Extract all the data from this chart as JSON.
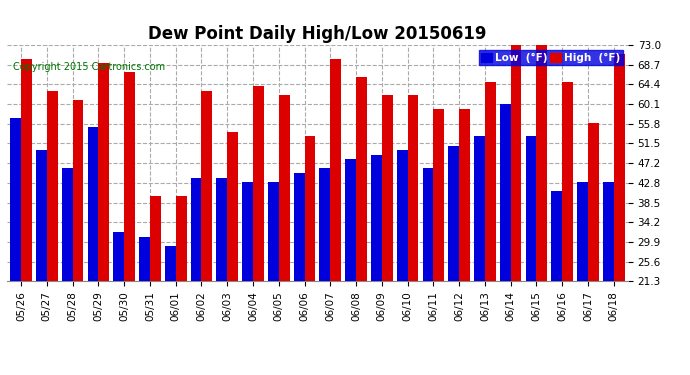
{
  "title": "Dew Point Daily High/Low 20150619",
  "copyright": "Copyright 2015 Cartronics.com",
  "legend_low": "Low  (°F)",
  "legend_high": "High  (°F)",
  "categories": [
    "05/26",
    "05/27",
    "05/28",
    "05/29",
    "05/30",
    "05/31",
    "06/01",
    "06/02",
    "06/03",
    "06/04",
    "06/05",
    "06/06",
    "06/07",
    "06/08",
    "06/09",
    "06/10",
    "06/11",
    "06/12",
    "06/13",
    "06/14",
    "06/15",
    "06/16",
    "06/17",
    "06/18"
  ],
  "low_values": [
    57,
    50,
    46,
    55,
    32,
    31,
    29,
    44,
    44,
    43,
    43,
    45,
    46,
    48,
    49,
    50,
    46,
    51,
    53,
    60,
    53,
    41,
    43,
    43
  ],
  "high_values": [
    70,
    63,
    61,
    69,
    67,
    40,
    40,
    63,
    54,
    64,
    62,
    53,
    70,
    66,
    62,
    62,
    59,
    59,
    65,
    73,
    73,
    65,
    56,
    71
  ],
  "ylim_min": 21.3,
  "ylim_max": 73.0,
  "yticks": [
    21.3,
    25.6,
    29.9,
    34.2,
    38.5,
    42.8,
    47.2,
    51.5,
    55.8,
    60.1,
    64.4,
    68.7,
    73.0
  ],
  "bar_color_low": "#0000dd",
  "bar_color_high": "#dd0000",
  "bg_color": "#ffffff",
  "grid_color": "#aaaaaa",
  "bar_width": 0.42,
  "title_fontsize": 12,
  "tick_fontsize": 7.5,
  "copyright_color": "#007700"
}
